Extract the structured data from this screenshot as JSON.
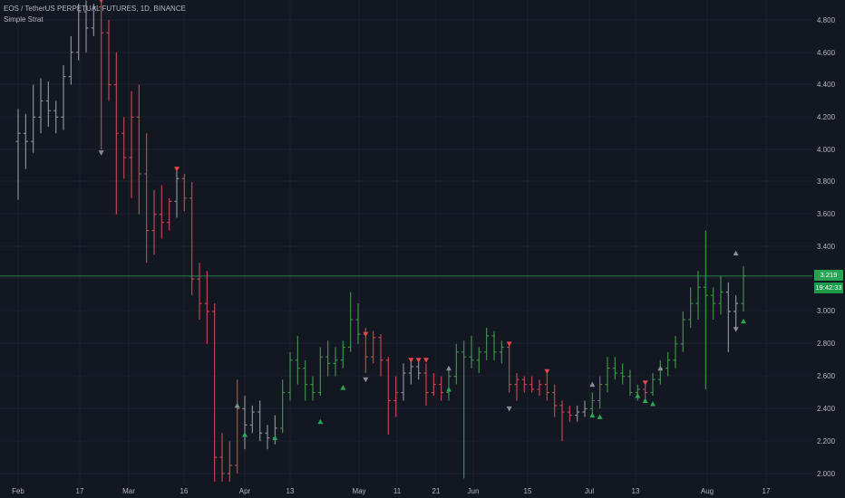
{
  "header": {
    "title": "EOS / TetherUS PERPETUAL FUTURES, 1D, BINANCE",
    "strategy": "Simple Strat"
  },
  "colors": {
    "background": "#131722",
    "grid": "#1e222d",
    "neutral": "#8a8d96",
    "bull": "#3e8e46",
    "bear": "#c2444c",
    "signal_up": "#26a652",
    "signal_down": "#e04848",
    "signal_neutral": "#8a8d96",
    "axis_text": "#b2b5be",
    "price_line": "#26a652"
  },
  "chart_data": {
    "type": "candlestick",
    "title": "EOS / TetherUS PERPETUAL FUTURES, 1D, BINANCE",
    "x_ticks": [
      "Feb",
      "17",
      "Mar",
      "16",
      "Apr",
      "13",
      "May",
      "11",
      "21",
      "Jun",
      "15",
      "Jul",
      "13",
      "Aug",
      "17"
    ],
    "y_ticks": [
      "2.000",
      "2.200",
      "2.400",
      "2.600",
      "2.800",
      "3.000",
      "3.200",
      "3.400",
      "3.600",
      "3.800",
      "4.000",
      "4.200",
      "4.400",
      "4.600",
      "4.800"
    ],
    "y_range": [
      1.93,
      4.93
    ],
    "last_price": "3.219",
    "countdown": "19:42:33",
    "price_line_value": 3.219,
    "grid": true,
    "series": [
      {
        "date": "Feb 1",
        "o": 4.05,
        "h": 4.25,
        "l": 3.69,
        "c": 4.1,
        "col": "neutral"
      },
      {
        "date": "Feb 3",
        "o": 4.1,
        "h": 4.22,
        "l": 3.88,
        "c": 4.05,
        "col": "neutral"
      },
      {
        "date": "Feb 5",
        "o": 4.05,
        "h": 4.4,
        "l": 3.98,
        "c": 4.2,
        "col": "neutral"
      },
      {
        "date": "Feb 7",
        "o": 4.2,
        "h": 4.44,
        "l": 4.1,
        "c": 4.3,
        "col": "neutral"
      },
      {
        "date": "Feb 9",
        "o": 4.3,
        "h": 4.42,
        "l": 4.14,
        "c": 4.24,
        "col": "neutral"
      },
      {
        "date": "Feb 11",
        "o": 4.24,
        "h": 4.3,
        "l": 4.1,
        "c": 4.2,
        "col": "neutral"
      },
      {
        "date": "Feb 13",
        "o": 4.2,
        "h": 4.52,
        "l": 4.12,
        "c": 4.45,
        "col": "neutral"
      },
      {
        "date": "Feb 15",
        "o": 4.45,
        "h": 4.7,
        "l": 4.4,
        "c": 4.6,
        "col": "neutral"
      },
      {
        "date": "Feb 17",
        "o": 4.6,
        "h": 4.9,
        "l": 4.55,
        "c": 4.85,
        "col": "neutral"
      },
      {
        "date": "Feb 19",
        "o": 4.85,
        "h": 4.92,
        "l": 4.6,
        "c": 4.75,
        "col": "neutral"
      },
      {
        "date": "Feb 21",
        "o": 4.75,
        "h": 4.9,
        "l": 4.7,
        "c": 4.88,
        "col": "neutral"
      },
      {
        "date": "Feb 23",
        "o": 4.88,
        "h": 4.92,
        "l": 4.0,
        "c": 4.72,
        "col": "bear"
      },
      {
        "date": "Feb 25",
        "o": 4.72,
        "h": 4.8,
        "l": 4.3,
        "c": 4.4,
        "col": "bear"
      },
      {
        "date": "Feb 27",
        "o": 4.4,
        "h": 4.6,
        "l": 3.6,
        "c": 4.1,
        "col": "bear"
      },
      {
        "date": "Feb 29",
        "o": 4.1,
        "h": 4.2,
        "l": 3.82,
        "c": 3.95,
        "col": "bear"
      },
      {
        "date": "Mar 2",
        "o": 3.95,
        "h": 4.36,
        "l": 3.7,
        "c": 4.2,
        "col": "bear"
      },
      {
        "date": "Mar 4",
        "o": 4.2,
        "h": 4.4,
        "l": 3.6,
        "c": 3.85,
        "col": "bear"
      },
      {
        "date": "Mar 6",
        "o": 3.85,
        "h": 4.1,
        "l": 3.3,
        "c": 3.5,
        "col": "bear"
      },
      {
        "date": "Mar 8",
        "o": 3.5,
        "h": 3.75,
        "l": 3.35,
        "c": 3.6,
        "col": "bear"
      },
      {
        "date": "Mar 10",
        "o": 3.6,
        "h": 3.78,
        "l": 3.45,
        "c": 3.55,
        "col": "bear"
      },
      {
        "date": "Mar 12",
        "o": 3.55,
        "h": 3.7,
        "l": 3.5,
        "c": 3.68,
        "col": "bear"
      },
      {
        "date": "Mar 14",
        "o": 3.68,
        "h": 3.88,
        "l": 3.58,
        "c": 3.82,
        "col": "neutral"
      },
      {
        "date": "Mar 16",
        "o": 3.82,
        "h": 3.85,
        "l": 3.62,
        "c": 3.7,
        "col": "bear"
      },
      {
        "date": "Mar 18",
        "o": 3.7,
        "h": 3.8,
        "l": 3.1,
        "c": 3.2,
        "col": "bear"
      },
      {
        "date": "Mar 20",
        "o": 3.2,
        "h": 3.3,
        "l": 2.95,
        "c": 3.05,
        "col": "bear"
      },
      {
        "date": "Mar 22",
        "o": 3.05,
        "h": 3.25,
        "l": 2.8,
        "c": 3.0,
        "col": "bear"
      },
      {
        "date": "Mar 24",
        "o": 3.0,
        "h": 3.05,
        "l": 1.95,
        "c": 2.1,
        "col": "bear"
      },
      {
        "date": "Mar 26",
        "o": 2.1,
        "h": 2.25,
        "l": 1.95,
        "c": 2.0,
        "col": "bear"
      },
      {
        "date": "Mar 28",
        "o": 2.0,
        "h": 2.2,
        "l": 1.95,
        "c": 2.05,
        "col": "bear"
      },
      {
        "date": "Mar 30",
        "o": 2.05,
        "h": 2.58,
        "l": 2.0,
        "c": 2.4,
        "col": "bear"
      },
      {
        "date": "Apr 1",
        "o": 2.4,
        "h": 2.48,
        "l": 2.15,
        "c": 2.3,
        "col": "neutral"
      },
      {
        "date": "Apr 3",
        "o": 2.3,
        "h": 2.42,
        "l": 2.25,
        "c": 2.38,
        "col": "neutral"
      },
      {
        "date": "Apr 5",
        "o": 2.38,
        "h": 2.45,
        "l": 2.2,
        "c": 2.25,
        "col": "neutral"
      },
      {
        "date": "Apr 7",
        "o": 2.25,
        "h": 2.3,
        "l": 2.15,
        "c": 2.22,
        "col": "neutral"
      },
      {
        "date": "Apr 9",
        "o": 2.22,
        "h": 2.36,
        "l": 2.18,
        "c": 2.28,
        "col": "neutral"
      },
      {
        "date": "Apr 11",
        "o": 2.28,
        "h": 2.58,
        "l": 2.25,
        "c": 2.5,
        "col": "bull"
      },
      {
        "date": "Apr 13",
        "o": 2.5,
        "h": 2.75,
        "l": 2.45,
        "c": 2.7,
        "col": "bull"
      },
      {
        "date": "Apr 15",
        "o": 2.7,
        "h": 2.85,
        "l": 2.55,
        "c": 2.65,
        "col": "bull"
      },
      {
        "date": "Apr 17",
        "o": 2.65,
        "h": 2.7,
        "l": 2.45,
        "c": 2.55,
        "col": "bull"
      },
      {
        "date": "Apr 19",
        "o": 2.55,
        "h": 2.6,
        "l": 2.45,
        "c": 2.5,
        "col": "bull"
      },
      {
        "date": "Apr 21",
        "o": 2.5,
        "h": 2.78,
        "l": 2.48,
        "c": 2.72,
        "col": "bull"
      },
      {
        "date": "Apr 23",
        "o": 2.72,
        "h": 2.82,
        "l": 2.6,
        "c": 2.68,
        "col": "bull"
      },
      {
        "date": "Apr 25",
        "o": 2.68,
        "h": 2.78,
        "l": 2.6,
        "c": 2.7,
        "col": "bull"
      },
      {
        "date": "Apr 27",
        "o": 2.7,
        "h": 2.82,
        "l": 2.65,
        "c": 2.78,
        "col": "bull"
      },
      {
        "date": "Apr 29",
        "o": 2.78,
        "h": 3.12,
        "l": 2.75,
        "c": 2.95,
        "col": "bull"
      },
      {
        "date": "May 1",
        "o": 2.95,
        "h": 3.05,
        "l": 2.8,
        "c": 2.86,
        "col": "bull"
      },
      {
        "date": "May 3",
        "o": 2.86,
        "h": 2.9,
        "l": 2.62,
        "c": 2.72,
        "col": "bear"
      },
      {
        "date": "May 5",
        "o": 2.72,
        "h": 2.88,
        "l": 2.68,
        "c": 2.84,
        "col": "bear"
      },
      {
        "date": "May 7",
        "o": 2.84,
        "h": 2.86,
        "l": 2.6,
        "c": 2.7,
        "col": "bear"
      },
      {
        "date": "May 9",
        "o": 2.7,
        "h": 2.72,
        "l": 2.24,
        "c": 2.45,
        "col": "bear"
      },
      {
        "date": "May 11",
        "o": 2.45,
        "h": 2.6,
        "l": 2.35,
        "c": 2.5,
        "col": "bear"
      },
      {
        "date": "May 13",
        "o": 2.5,
        "h": 2.68,
        "l": 2.45,
        "c": 2.62,
        "col": "neutral"
      },
      {
        "date": "May 15",
        "o": 2.62,
        "h": 2.7,
        "l": 2.55,
        "c": 2.66,
        "col": "neutral"
      },
      {
        "date": "May 17",
        "o": 2.66,
        "h": 2.7,
        "l": 2.58,
        "c": 2.62,
        "col": "neutral"
      },
      {
        "date": "May 19",
        "o": 2.62,
        "h": 2.68,
        "l": 2.42,
        "c": 2.5,
        "col": "bear"
      },
      {
        "date": "May 21",
        "o": 2.5,
        "h": 2.62,
        "l": 2.48,
        "c": 2.55,
        "col": "bear"
      },
      {
        "date": "May 23",
        "o": 2.55,
        "h": 2.6,
        "l": 2.45,
        "c": 2.5,
        "col": "bear"
      },
      {
        "date": "May 25",
        "o": 2.5,
        "h": 2.66,
        "l": 2.45,
        "c": 2.6,
        "col": "bull"
      },
      {
        "date": "May 27",
        "o": 2.6,
        "h": 2.8,
        "l": 2.55,
        "c": 2.75,
        "col": "bull"
      },
      {
        "date": "May 29",
        "o": 2.75,
        "h": 2.82,
        "l": 1.97,
        "c": 2.72,
        "col": "bull"
      },
      {
        "date": "May 31",
        "o": 2.72,
        "h": 2.85,
        "l": 2.65,
        "c": 2.7,
        "col": "bull"
      },
      {
        "date": "Jun 2",
        "o": 2.7,
        "h": 2.78,
        "l": 2.62,
        "c": 2.75,
        "col": "bull"
      },
      {
        "date": "Jun 4",
        "o": 2.75,
        "h": 2.9,
        "l": 2.7,
        "c": 2.85,
        "col": "bull"
      },
      {
        "date": "Jun 6",
        "o": 2.85,
        "h": 2.88,
        "l": 2.7,
        "c": 2.75,
        "col": "bull"
      },
      {
        "date": "Jun 8",
        "o": 2.75,
        "h": 2.82,
        "l": 2.68,
        "c": 2.78,
        "col": "bull"
      },
      {
        "date": "Jun 10",
        "o": 2.78,
        "h": 2.8,
        "l": 2.5,
        "c": 2.55,
        "col": "bear"
      },
      {
        "date": "Jun 12",
        "o": 2.55,
        "h": 2.62,
        "l": 2.45,
        "c": 2.58,
        "col": "bear"
      },
      {
        "date": "Jun 14",
        "o": 2.58,
        "h": 2.6,
        "l": 2.5,
        "c": 2.55,
        "col": "bear"
      },
      {
        "date": "Jun 16",
        "o": 2.55,
        "h": 2.6,
        "l": 2.5,
        "c": 2.52,
        "col": "bear"
      },
      {
        "date": "Jun 18",
        "o": 2.52,
        "h": 2.58,
        "l": 2.48,
        "c": 2.55,
        "col": "bear"
      },
      {
        "date": "Jun 20",
        "o": 2.55,
        "h": 2.62,
        "l": 2.45,
        "c": 2.5,
        "col": "bear"
      },
      {
        "date": "Jun 22",
        "o": 2.5,
        "h": 2.55,
        "l": 2.35,
        "c": 2.42,
        "col": "bear"
      },
      {
        "date": "Jun 24",
        "o": 2.42,
        "h": 2.45,
        "l": 2.2,
        "c": 2.38,
        "col": "bear"
      },
      {
        "date": "Jun 26",
        "o": 2.38,
        "h": 2.42,
        "l": 2.32,
        "c": 2.36,
        "col": "bear"
      },
      {
        "date": "Jun 28",
        "o": 2.36,
        "h": 2.42,
        "l": 2.32,
        "c": 2.38,
        "col": "neutral"
      },
      {
        "date": "Jun 30",
        "o": 2.38,
        "h": 2.45,
        "l": 2.35,
        "c": 2.4,
        "col": "neutral"
      },
      {
        "date": "Jul 2",
        "o": 2.4,
        "h": 2.5,
        "l": 2.36,
        "c": 2.45,
        "col": "bull"
      },
      {
        "date": "Jul 4",
        "o": 2.45,
        "h": 2.6,
        "l": 2.4,
        "c": 2.55,
        "col": "bull"
      },
      {
        "date": "Jul 6",
        "o": 2.55,
        "h": 2.72,
        "l": 2.5,
        "c": 2.65,
        "col": "bull"
      },
      {
        "date": "Jul 8",
        "o": 2.65,
        "h": 2.72,
        "l": 2.58,
        "c": 2.62,
        "col": "bull"
      },
      {
        "date": "Jul 10",
        "o": 2.62,
        "h": 2.68,
        "l": 2.55,
        "c": 2.6,
        "col": "bull"
      },
      {
        "date": "Jul 12",
        "o": 2.6,
        "h": 2.64,
        "l": 2.48,
        "c": 2.5,
        "col": "bull"
      },
      {
        "date": "Jul 14",
        "o": 2.5,
        "h": 2.55,
        "l": 2.45,
        "c": 2.52,
        "col": "bull"
      },
      {
        "date": "Jul 16",
        "o": 2.52,
        "h": 2.56,
        "l": 2.46,
        "c": 2.5,
        "col": "bear"
      },
      {
        "date": "Jul 18",
        "o": 2.5,
        "h": 2.62,
        "l": 2.48,
        "c": 2.58,
        "col": "bull"
      },
      {
        "date": "Jul 20",
        "o": 2.58,
        "h": 2.7,
        "l": 2.55,
        "c": 2.65,
        "col": "bull"
      },
      {
        "date": "Jul 22",
        "o": 2.65,
        "h": 2.75,
        "l": 2.6,
        "c": 2.7,
        "col": "bull"
      },
      {
        "date": "Jul 24",
        "o": 2.7,
        "h": 2.85,
        "l": 2.65,
        "c": 2.8,
        "col": "bull"
      },
      {
        "date": "Jul 26",
        "o": 2.8,
        "h": 3.0,
        "l": 2.75,
        "c": 2.95,
        "col": "bull"
      },
      {
        "date": "Jul 28",
        "o": 2.95,
        "h": 3.15,
        "l": 2.9,
        "c": 3.05,
        "col": "bull"
      },
      {
        "date": "Jul 30",
        "o": 3.05,
        "h": 3.25,
        "l": 2.95,
        "c": 3.15,
        "col": "bull"
      },
      {
        "date": "Aug 1",
        "o": 3.15,
        "h": 3.5,
        "l": 2.52,
        "c": 3.1,
        "col": "bull"
      },
      {
        "date": "Aug 3",
        "o": 3.1,
        "h": 3.15,
        "l": 2.95,
        "c": 3.05,
        "col": "bull"
      },
      {
        "date": "Aug 5",
        "o": 3.05,
        "h": 3.22,
        "l": 2.98,
        "c": 3.12,
        "col": "bull"
      },
      {
        "date": "Aug 7",
        "o": 3.12,
        "h": 3.18,
        "l": 2.75,
        "c": 3.0,
        "col": "neutral"
      },
      {
        "date": "Aug 9",
        "o": 3.0,
        "h": 3.1,
        "l": 2.9,
        "c": 3.05,
        "col": "neutral"
      },
      {
        "date": "Aug 11",
        "o": 3.05,
        "h": 3.28,
        "l": 3.0,
        "c": 3.22,
        "col": "bull"
      }
    ],
    "signals": [
      {
        "date": "Feb 23",
        "type": "down",
        "price": 4.92,
        "col": "signal_down"
      },
      {
        "date": "Feb 23",
        "type": "down",
        "price": 3.98,
        "col": "signal_neutral"
      },
      {
        "date": "Mar 14",
        "type": "down",
        "price": 3.88,
        "col": "signal_down"
      },
      {
        "date": "Mar 30",
        "type": "up",
        "price": 2.42,
        "col": "signal_neutral"
      },
      {
        "date": "Apr 1",
        "type": "up",
        "price": 2.24,
        "col": "signal_up"
      },
      {
        "date": "Apr 9",
        "type": "up",
        "price": 2.22,
        "col": "signal_up"
      },
      {
        "date": "Apr 21",
        "type": "up",
        "price": 2.32,
        "col": "signal_up"
      },
      {
        "date": "Apr 27",
        "type": "up",
        "price": 2.53,
        "col": "signal_up"
      },
      {
        "date": "May 3",
        "type": "down",
        "price": 2.86,
        "col": "signal_down"
      },
      {
        "date": "May 3",
        "type": "down",
        "price": 2.58,
        "col": "signal_neutral"
      },
      {
        "date": "May 15",
        "type": "down",
        "price": 2.7,
        "col": "signal_down"
      },
      {
        "date": "May 17",
        "type": "down",
        "price": 2.7,
        "col": "signal_down"
      },
      {
        "date": "May 19",
        "type": "down",
        "price": 2.7,
        "col": "signal_down"
      },
      {
        "date": "May 25",
        "type": "up",
        "price": 2.65,
        "col": "signal_neutral"
      },
      {
        "date": "May 25",
        "type": "up",
        "price": 2.52,
        "col": "signal_up"
      },
      {
        "date": "Jun 10",
        "type": "down",
        "price": 2.8,
        "col": "signal_down"
      },
      {
        "date": "Jun 10",
        "type": "down",
        "price": 2.4,
        "col": "signal_neutral"
      },
      {
        "date": "Jun 20",
        "type": "down",
        "price": 2.63,
        "col": "signal_down"
      },
      {
        "date": "Jul 2",
        "type": "up",
        "price": 2.55,
        "col": "signal_neutral"
      },
      {
        "date": "Jul 2",
        "type": "up",
        "price": 2.36,
        "col": "signal_up"
      },
      {
        "date": "Jul 4",
        "type": "up",
        "price": 2.35,
        "col": "signal_up"
      },
      {
        "date": "Jul 14",
        "type": "up",
        "price": 2.48,
        "col": "signal_up"
      },
      {
        "date": "Jul 16",
        "type": "down",
        "price": 2.56,
        "col": "signal_down"
      },
      {
        "date": "Jul 16",
        "type": "up",
        "price": 2.45,
        "col": "signal_up"
      },
      {
        "date": "Jul 18",
        "type": "up",
        "price": 2.43,
        "col": "signal_up"
      },
      {
        "date": "Jul 20",
        "type": "up",
        "price": 2.65,
        "col": "signal_neutral"
      },
      {
        "date": "Aug 9",
        "type": "up",
        "price": 3.36,
        "col": "signal_neutral"
      },
      {
        "date": "Aug 9",
        "type": "down",
        "price": 2.89,
        "col": "signal_neutral"
      },
      {
        "date": "Aug 11",
        "type": "up",
        "price": 2.94,
        "col": "signal_up"
      }
    ]
  }
}
